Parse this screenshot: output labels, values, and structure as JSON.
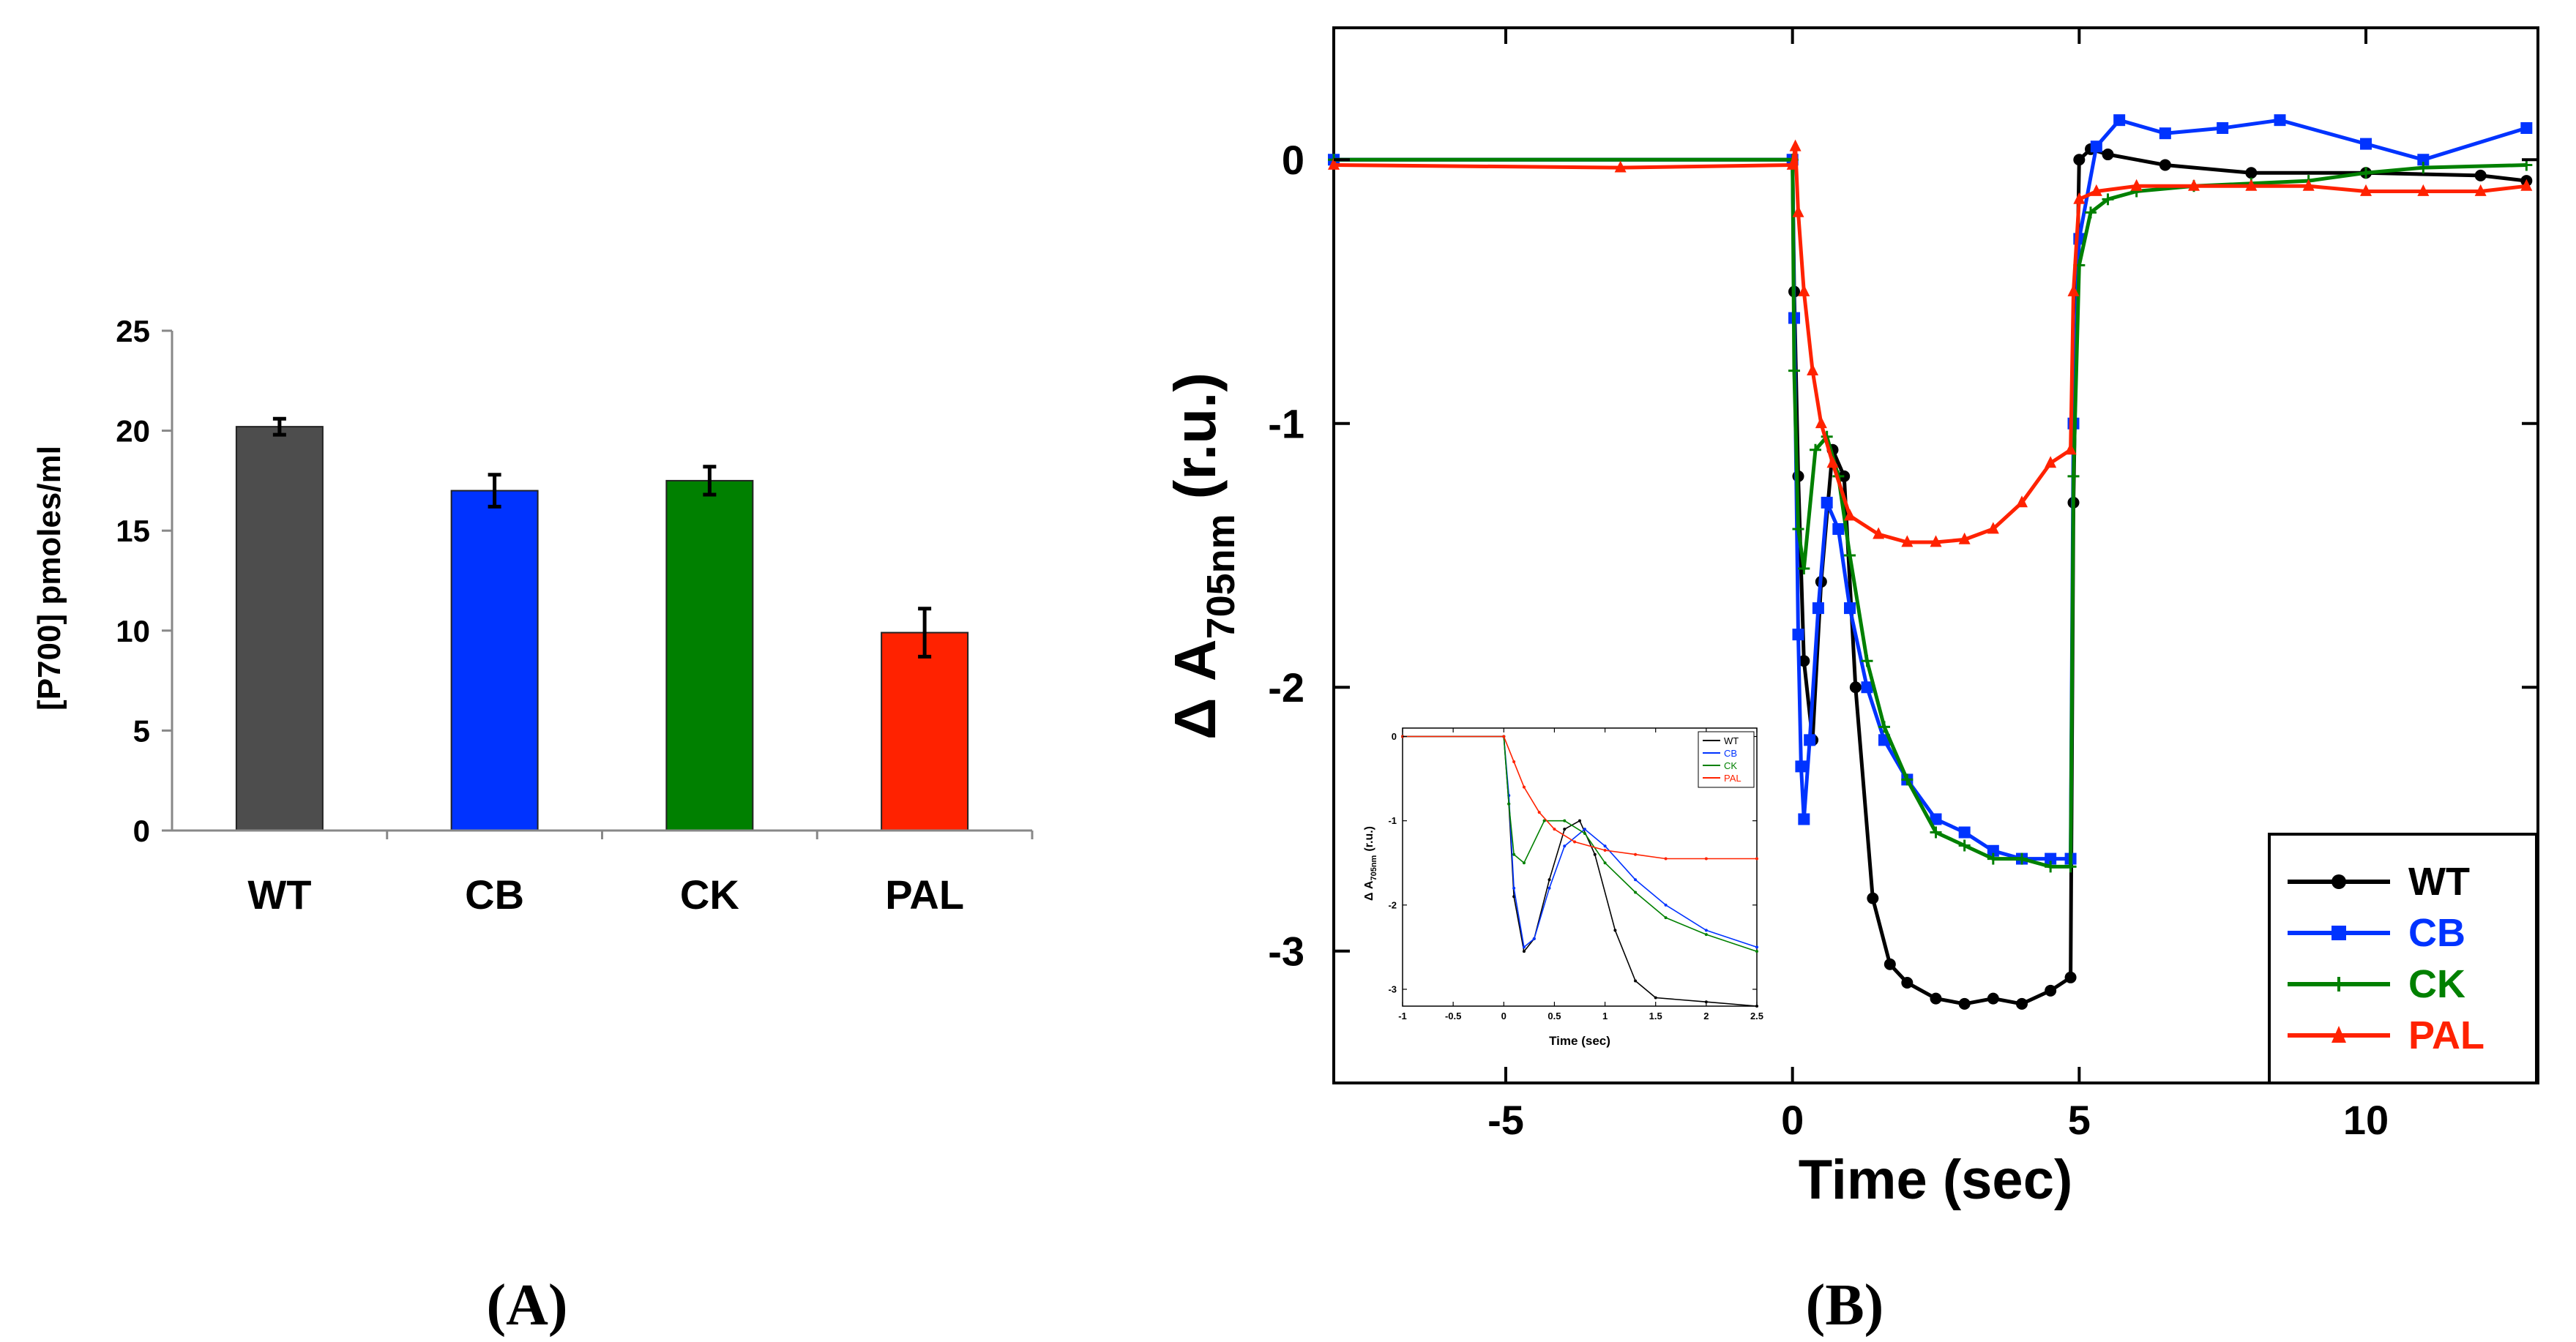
{
  "chart_data": [
    {
      "type": "bar",
      "panel_label": "(A)",
      "ylabel": "[P700] pmoles/ml",
      "ylim": [
        0,
        25
      ],
      "yticks": [
        0,
        5,
        10,
        15,
        20,
        25
      ],
      "categories": [
        "WT",
        "CB",
        "CK",
        "PAL"
      ],
      "values": [
        20.2,
        17.0,
        17.5,
        9.9
      ],
      "errors": [
        0.4,
        0.8,
        0.7,
        1.2
      ],
      "colors": [
        "#4d4d4d",
        "#0033ff",
        "#008000",
        "#ff2200"
      ],
      "grid": false
    },
    {
      "type": "line",
      "panel_label": "(B)",
      "xlabel": "Time (sec)",
      "ylabel_main": "Δ A",
      "ylabel_sub": "705nm",
      "ylabel_unit": "(r.u.)",
      "xlim": [
        -8,
        13
      ],
      "ylim": [
        -3.5,
        0.5
      ],
      "xticks": [
        -5,
        0,
        5,
        10
      ],
      "yticks": [
        0,
        -1,
        -2,
        -3
      ],
      "legend_position": "bottom-right",
      "series": [
        {
          "name": "WT",
          "color": "#000000",
          "marker": "circle",
          "x": [
            -8,
            0,
            0.03,
            0.1,
            0.2,
            0.35,
            0.5,
            0.7,
            0.9,
            1.1,
            1.4,
            1.7,
            2.0,
            2.5,
            3.0,
            3.5,
            4.0,
            4.5,
            4.85,
            4.9,
            5.0,
            5.2,
            5.5,
            6.5,
            8.0,
            10.0,
            12.0,
            12.8
          ],
          "y": [
            0,
            0,
            -0.5,
            -1.2,
            -1.9,
            -2.2,
            -1.6,
            -1.1,
            -1.2,
            -2.0,
            -2.8,
            -3.05,
            -3.12,
            -3.18,
            -3.2,
            -3.18,
            -3.2,
            -3.15,
            -3.1,
            -1.3,
            0.0,
            0.04,
            0.02,
            -0.02,
            -0.05,
            -0.05,
            -0.06,
            -0.08
          ]
        },
        {
          "name": "CB",
          "color": "#0033ff",
          "marker": "square",
          "x": [
            -8,
            0,
            0.03,
            0.1,
            0.15,
            0.2,
            0.3,
            0.45,
            0.6,
            0.8,
            1.0,
            1.3,
            1.6,
            2.0,
            2.5,
            3.0,
            3.5,
            4.0,
            4.5,
            4.85,
            4.9,
            5.0,
            5.3,
            5.7,
            6.5,
            7.5,
            8.5,
            10.0,
            11.0,
            12.8
          ],
          "y": [
            0,
            0,
            -0.6,
            -1.8,
            -2.3,
            -2.5,
            -2.2,
            -1.7,
            -1.3,
            -1.4,
            -1.7,
            -2.0,
            -2.2,
            -2.35,
            -2.5,
            -2.55,
            -2.62,
            -2.65,
            -2.65,
            -2.65,
            -1.0,
            -0.3,
            0.05,
            0.15,
            0.1,
            0.12,
            0.15,
            0.06,
            0.0,
            0.12
          ]
        },
        {
          "name": "CK",
          "color": "#008000",
          "marker": "plus",
          "x": [
            -8,
            0,
            0.03,
            0.1,
            0.2,
            0.4,
            0.6,
            0.8,
            1.0,
            1.3,
            1.6,
            2.0,
            2.5,
            3.0,
            3.5,
            4.0,
            4.5,
            4.85,
            4.9,
            5.0,
            5.2,
            5.5,
            6.0,
            7.0,
            8.0,
            9.0,
            10.0,
            11.0,
            12.8
          ],
          "y": [
            0,
            0,
            -0.8,
            -1.4,
            -1.55,
            -1.1,
            -1.05,
            -1.2,
            -1.5,
            -1.9,
            -2.15,
            -2.35,
            -2.55,
            -2.6,
            -2.65,
            -2.65,
            -2.68,
            -2.68,
            -1.2,
            -0.4,
            -0.2,
            -0.15,
            -0.12,
            -0.1,
            -0.09,
            -0.08,
            -0.05,
            -0.03,
            -0.02
          ]
        },
        {
          "name": "PAL",
          "color": "#ff2200",
          "marker": "triangle",
          "x": [
            -8,
            -3,
            0,
            0.05,
            0.1,
            0.2,
            0.35,
            0.5,
            0.7,
            1.0,
            1.5,
            2.0,
            2.5,
            3.0,
            3.5,
            4.0,
            4.5,
            4.85,
            4.9,
            5.0,
            5.3,
            6.0,
            7.0,
            8.0,
            9.0,
            10.0,
            11.0,
            12.0,
            12.8
          ],
          "y": [
            -0.02,
            -0.03,
            -0.02,
            0.05,
            -0.2,
            -0.5,
            -0.8,
            -1.0,
            -1.15,
            -1.35,
            -1.42,
            -1.45,
            -1.45,
            -1.44,
            -1.4,
            -1.3,
            -1.15,
            -1.1,
            -0.5,
            -0.15,
            -0.12,
            -0.1,
            -0.1,
            -0.1,
            -0.1,
            -0.12,
            -0.12,
            -0.12,
            -0.1
          ]
        }
      ],
      "inset": {
        "type": "line",
        "xlabel": "Time (sec)",
        "ylabel_main": "Δ A",
        "ylabel_sub": "705nm",
        "ylabel_unit": "(r.u.)",
        "xlim": [
          -1,
          2.5
        ],
        "ylim": [
          -3.2,
          0.1
        ],
        "xticks": [
          -1,
          -0.5,
          0,
          0.5,
          1,
          1.5,
          2,
          2.5
        ],
        "yticks": [
          0,
          -1,
          -2,
          -3
        ],
        "legend_position": "top-right",
        "series": [
          {
            "name": "WT",
            "color": "#000000",
            "x": [
              -1,
              0,
              0.05,
              0.1,
              0.2,
              0.3,
              0.45,
              0.6,
              0.75,
              0.9,
              1.1,
              1.3,
              1.5,
              2.0,
              2.5
            ],
            "y": [
              0,
              0,
              -0.8,
              -1.9,
              -2.55,
              -2.4,
              -1.7,
              -1.1,
              -1.0,
              -1.4,
              -2.3,
              -2.9,
              -3.1,
              -3.15,
              -3.2
            ]
          },
          {
            "name": "CB",
            "color": "#0033ff",
            "x": [
              -1,
              0,
              0.05,
              0.1,
              0.2,
              0.3,
              0.45,
              0.6,
              0.8,
              1.0,
              1.3,
              1.6,
              2.0,
              2.5
            ],
            "y": [
              0,
              0,
              -0.7,
              -1.8,
              -2.5,
              -2.4,
              -1.8,
              -1.3,
              -1.1,
              -1.3,
              -1.7,
              -2.0,
              -2.3,
              -2.5
            ]
          },
          {
            "name": "CK",
            "color": "#008000",
            "x": [
              -1,
              0,
              0.05,
              0.1,
              0.2,
              0.4,
              0.6,
              0.8,
              1.0,
              1.3,
              1.6,
              2.0,
              2.5
            ],
            "y": [
              0,
              0,
              -0.8,
              -1.4,
              -1.5,
              -1.0,
              -1.0,
              -1.15,
              -1.5,
              -1.85,
              -2.15,
              -2.35,
              -2.55
            ]
          },
          {
            "name": "PAL",
            "color": "#ff2200",
            "x": [
              -1,
              0,
              0.1,
              0.2,
              0.35,
              0.5,
              0.7,
              1.0,
              1.3,
              1.6,
              2.0,
              2.5
            ],
            "y": [
              0,
              0,
              -0.3,
              -0.6,
              -0.9,
              -1.1,
              -1.25,
              -1.35,
              -1.4,
              -1.45,
              -1.45,
              -1.45
            ]
          }
        ]
      }
    }
  ]
}
